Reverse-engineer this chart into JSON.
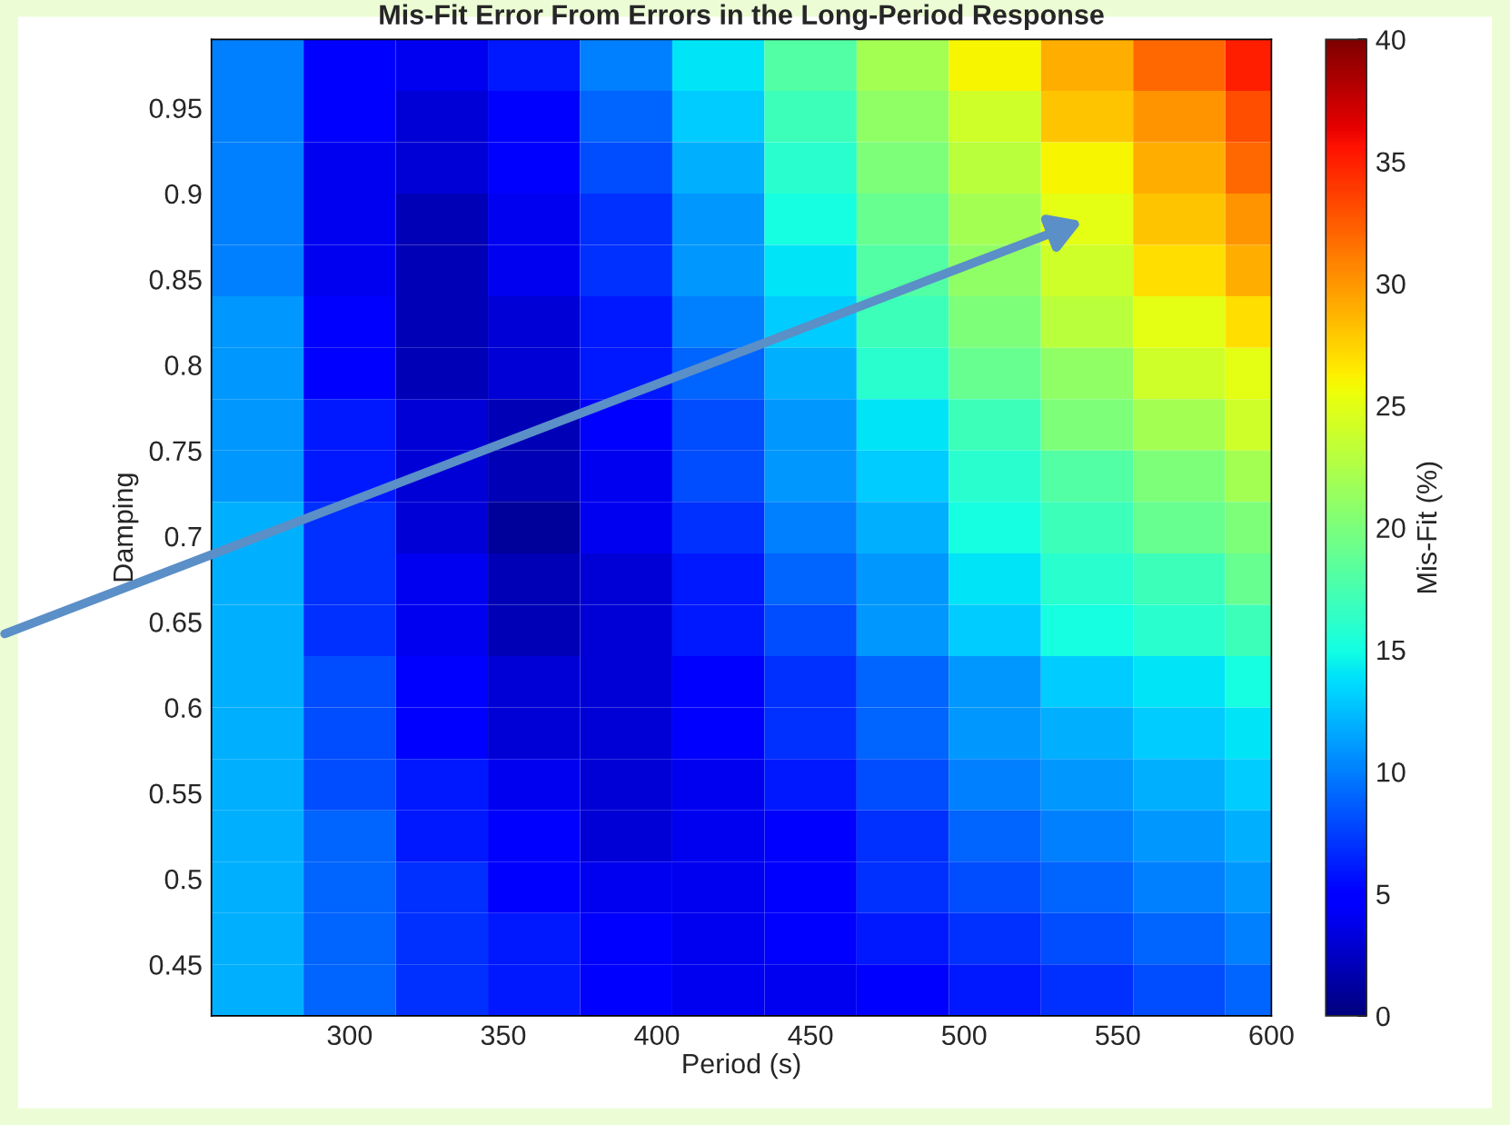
{
  "chart_data": {
    "type": "heatmap",
    "title": "Mis-Fit Error From Errors in the Long-Period Response",
    "xlabel": "Period (s)",
    "ylabel": "Damping",
    "clabel": "Mis-Fit (%)",
    "x": [
      270,
      300,
      330,
      360,
      390,
      420,
      450,
      480,
      510,
      540,
      570,
      600
    ],
    "y": [
      0.975,
      0.945,
      0.915,
      0.885,
      0.855,
      0.825,
      0.795,
      0.765,
      0.735,
      0.705,
      0.675,
      0.645,
      0.615,
      0.585,
      0.555,
      0.525,
      0.495,
      0.465,
      0.435
    ],
    "cells": [
      [
        10,
        5,
        4,
        6,
        10,
        14,
        18,
        22,
        26,
        29,
        32,
        35
      ],
      [
        10,
        5,
        3,
        5,
        9,
        13,
        17,
        21,
        24,
        28,
        30,
        33
      ],
      [
        10,
        4,
        3,
        5,
        8,
        12,
        16,
        20,
        23,
        26,
        29,
        32
      ],
      [
        10,
        4,
        2,
        4,
        7,
        11,
        15,
        19,
        22,
        25,
        28,
        30
      ],
      [
        10,
        4,
        2,
        4,
        7,
        11,
        14,
        18,
        21,
        24,
        27,
        29
      ],
      [
        11,
        5,
        2,
        3,
        6,
        10,
        13,
        17,
        20,
        23,
        25,
        27
      ],
      [
        11,
        5,
        2,
        3,
        6,
        9,
        12,
        16,
        19,
        21,
        24,
        25
      ],
      [
        11,
        6,
        3,
        2,
        5,
        8,
        11,
        14,
        17,
        20,
        22,
        24
      ],
      [
        11,
        6,
        3,
        2,
        4,
        8,
        11,
        13,
        16,
        18,
        20,
        22
      ],
      [
        12,
        7,
        3,
        1,
        4,
        7,
        10,
        12,
        15,
        17,
        19,
        20
      ],
      [
        12,
        7,
        4,
        2,
        3,
        6,
        9,
        11,
        14,
        16,
        17,
        19
      ],
      [
        12,
        7,
        4,
        2,
        3,
        6,
        8,
        11,
        13,
        15,
        16,
        17
      ],
      [
        12,
        8,
        5,
        3,
        3,
        5,
        7,
        9,
        11,
        13,
        14,
        15
      ],
      [
        12,
        8,
        5,
        3,
        3,
        5,
        7,
        9,
        11,
        12,
        13,
        14
      ],
      [
        12,
        8,
        6,
        4,
        3,
        4,
        6,
        8,
        10,
        11,
        12,
        13
      ],
      [
        12,
        9,
        6,
        5,
        3,
        4,
        5,
        7,
        9,
        10,
        11,
        12
      ],
      [
        12,
        9,
        7,
        5,
        4,
        4,
        5,
        7,
        8,
        9,
        10,
        11
      ],
      [
        12,
        9,
        7,
        6,
        5,
        4,
        5,
        6,
        7,
        8,
        9,
        10
      ],
      [
        12,
        9,
        7,
        6,
        5,
        4,
        4,
        5,
        6,
        7,
        8,
        9
      ]
    ],
    "xlim": [
      255,
      600
    ],
    "ylim": [
      0.42,
      0.99
    ],
    "xticks": [
      300,
      350,
      400,
      450,
      500,
      550,
      600
    ],
    "yticks": [
      0.45,
      0.5,
      0.55,
      0.6,
      0.65,
      0.7,
      0.75,
      0.8,
      0.85,
      0.9,
      0.95
    ],
    "clim": [
      0,
      40
    ],
    "cticks": [
      0,
      5,
      10,
      15,
      20,
      25,
      30,
      35,
      40
    ]
  }
}
